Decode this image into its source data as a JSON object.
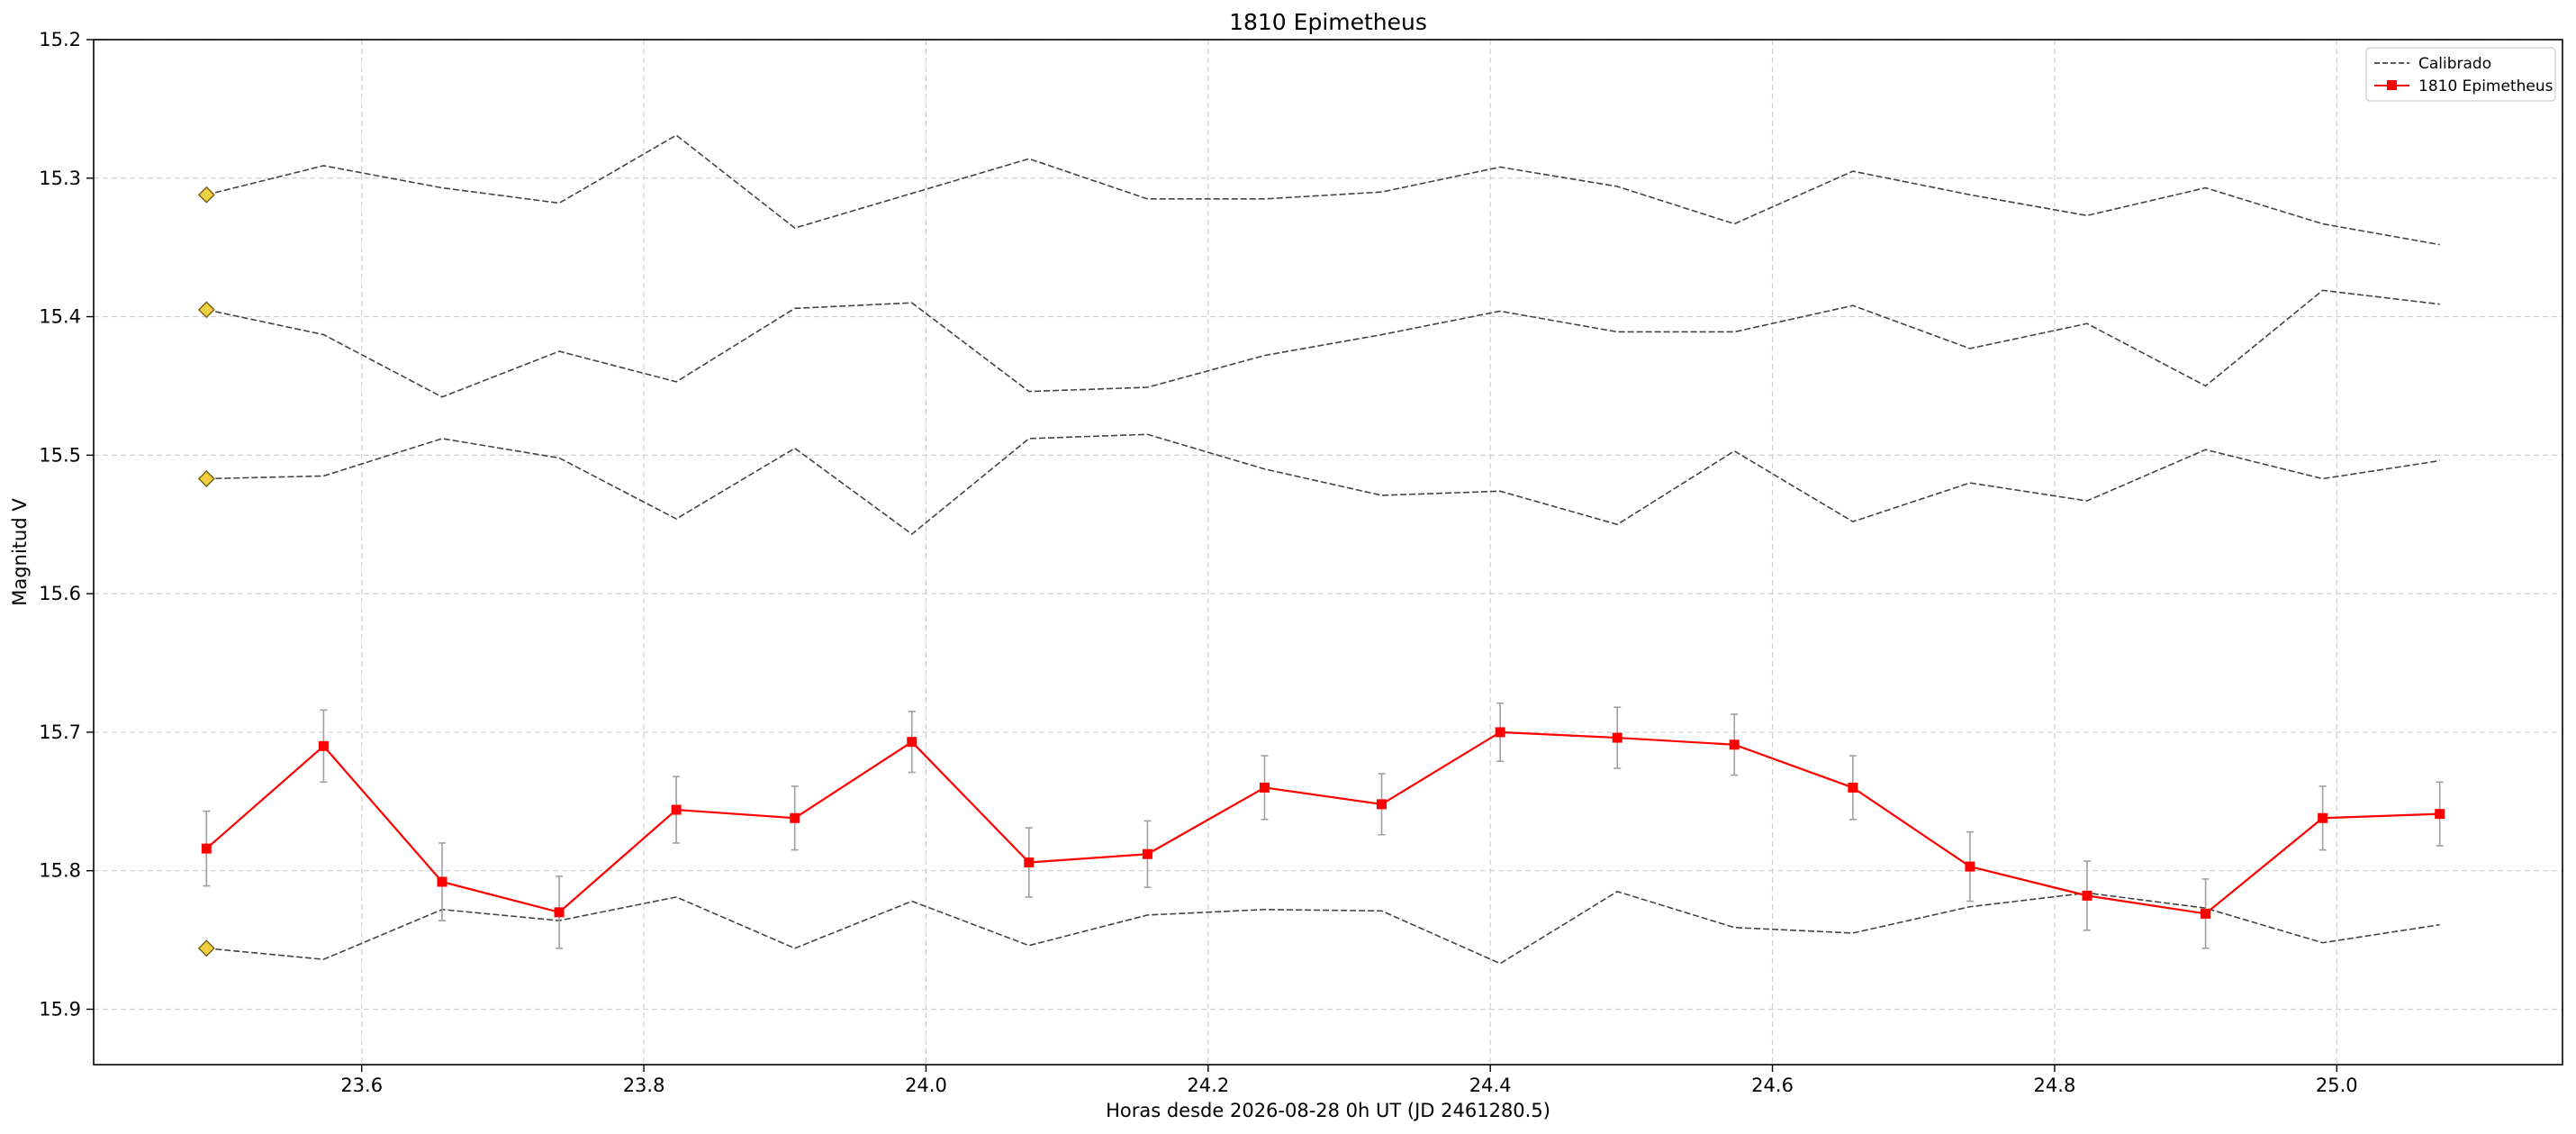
{
  "chart_data": {
    "type": "line",
    "title": "1810 Epimetheus",
    "xlabel": "Horas desde 2026-08-28 0h UT (JD 2461280.5)",
    "ylabel": "Magnitud V",
    "xlim": [
      23.41,
      25.16
    ],
    "ylim": [
      15.94,
      15.2
    ],
    "y_inverted": true,
    "grid": true,
    "legend_position": "top-right",
    "xticks": [
      23.6,
      23.8,
      24.0,
      24.2,
      24.4,
      24.6,
      24.8,
      25.0
    ],
    "xtick_labels": [
      "23.6",
      "23.8",
      "24.0",
      "24.2",
      "24.4",
      "24.6",
      "24.8",
      "25.0"
    ],
    "yticks": [
      15.2,
      15.3,
      15.4,
      15.5,
      15.6,
      15.7,
      15.8,
      15.9
    ],
    "ytick_labels": [
      "15.2",
      "15.3",
      "15.4",
      "15.5",
      "15.6",
      "15.7",
      "15.8",
      "15.9"
    ],
    "x": [
      23.49,
      23.573,
      23.657,
      23.74,
      23.823,
      23.907,
      23.99,
      24.073,
      24.157,
      24.24,
      24.323,
      24.407,
      24.49,
      24.573,
      24.657,
      24.74,
      24.823,
      24.907,
      24.99,
      25.073
    ],
    "series": [
      {
        "name": "Calibrado",
        "style": "dashed",
        "color": "#444444",
        "values": [
          15.312,
          15.291,
          15.307,
          15.318,
          15.269,
          15.336,
          15.311,
          15.286,
          15.315,
          15.315,
          15.31,
          15.292,
          15.306,
          15.333,
          15.295,
          15.312,
          15.327,
          15.307,
          15.333,
          15.348
        ]
      },
      {
        "name": "",
        "style": "dashed",
        "color": "#444444",
        "values": [
          15.395,
          15.413,
          15.458,
          15.425,
          15.447,
          15.394,
          15.39,
          15.454,
          15.451,
          15.428,
          15.413,
          15.396,
          15.411,
          15.411,
          15.392,
          15.423,
          15.405,
          15.45,
          15.381,
          15.391
        ]
      },
      {
        "name": "",
        "style": "dashed",
        "color": "#444444",
        "values": [
          15.517,
          15.515,
          15.488,
          15.502,
          15.546,
          15.495,
          15.557,
          15.488,
          15.485,
          15.51,
          15.529,
          15.526,
          15.55,
          15.497,
          15.548,
          15.52,
          15.533,
          15.496,
          15.517,
          15.504
        ]
      },
      {
        "name": "",
        "style": "dashed",
        "color": "#444444",
        "values": [
          15.856,
          15.864,
          15.828,
          15.836,
          15.819,
          15.856,
          15.822,
          15.854,
          15.832,
          15.828,
          15.829,
          15.867,
          15.815,
          15.841,
          15.845,
          15.826,
          15.816,
          15.827,
          15.852,
          15.839
        ]
      },
      {
        "name": "1810 Epimetheus",
        "style": "solid",
        "color": "#ff0000",
        "marker": "square",
        "values": [
          15.784,
          15.71,
          15.808,
          15.83,
          15.756,
          15.762,
          15.707,
          15.794,
          15.788,
          15.74,
          15.752,
          15.7,
          15.704,
          15.709,
          15.74,
          15.797,
          15.818,
          15.831,
          15.762,
          15.759
        ],
        "errors": [
          0.027,
          0.026,
          0.028,
          0.026,
          0.024,
          0.023,
          0.022,
          0.025,
          0.024,
          0.023,
          0.022,
          0.021,
          0.022,
          0.022,
          0.023,
          0.025,
          0.025,
          0.025,
          0.023,
          0.023
        ]
      }
    ],
    "reference_markers": {
      "shape": "diamond",
      "color": "#f0d040",
      "x": 23.49,
      "values": [
        15.312,
        15.395,
        15.517,
        15.856
      ]
    },
    "legend": [
      {
        "label": "Calibrado",
        "style": "dashed",
        "color": "#444444"
      },
      {
        "label": "1810 Epimetheus",
        "style": "solid",
        "color": "#ff0000",
        "marker": "square"
      }
    ]
  }
}
